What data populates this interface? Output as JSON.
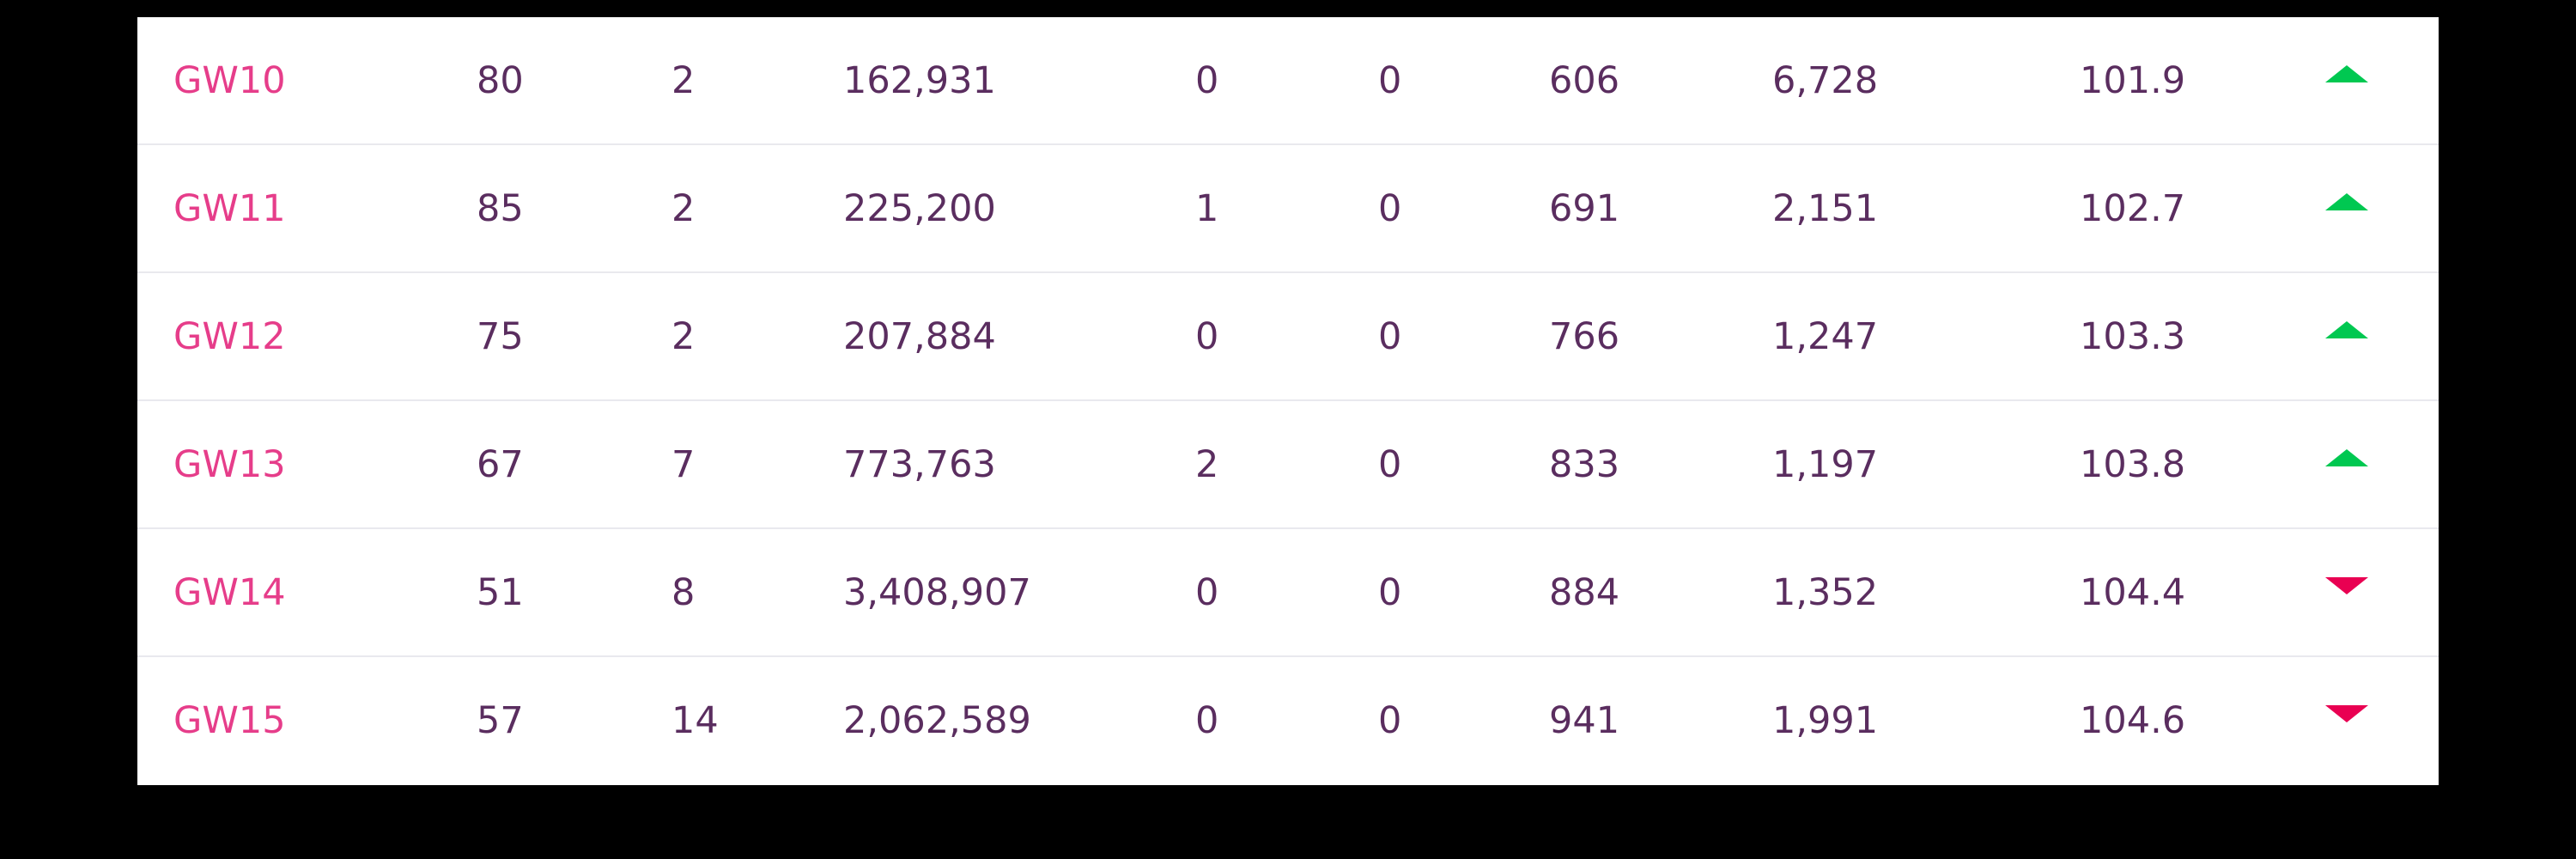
{
  "colors": {
    "gameweek_link": "#e63d8a",
    "text": "#37003c",
    "rank_up": "#00c851",
    "rank_down": "#e90052",
    "background": "#000000",
    "panel": "#ffffff"
  },
  "rows": [
    {
      "gw": "GW10",
      "points": "80",
      "bench": "2",
      "gw_rank": "162,931",
      "transfers": "0",
      "transfer_cost": "0",
      "overall_points": "606",
      "overall_rank": "6,728",
      "value": "101.9",
      "movement_icon": "arrow-up-icon"
    },
    {
      "gw": "GW11",
      "points": "85",
      "bench": "2",
      "gw_rank": "225,200",
      "transfers": "1",
      "transfer_cost": "0",
      "overall_points": "691",
      "overall_rank": "2,151",
      "value": "102.7",
      "movement_icon": "arrow-up-icon"
    },
    {
      "gw": "GW12",
      "points": "75",
      "bench": "2",
      "gw_rank": "207,884",
      "transfers": "0",
      "transfer_cost": "0",
      "overall_points": "766",
      "overall_rank": "1,247",
      "value": "103.3",
      "movement_icon": "arrow-up-icon"
    },
    {
      "gw": "GW13",
      "points": "67",
      "bench": "7",
      "gw_rank": "773,763",
      "transfers": "2",
      "transfer_cost": "0",
      "overall_points": "833",
      "overall_rank": "1,197",
      "value": "103.8",
      "movement_icon": "arrow-up-icon"
    },
    {
      "gw": "GW14",
      "points": "51",
      "bench": "8",
      "gw_rank": "3,408,907",
      "transfers": "0",
      "transfer_cost": "0",
      "overall_points": "884",
      "overall_rank": "1,352",
      "value": "104.4",
      "movement_icon": "arrow-down-icon"
    },
    {
      "gw": "GW15",
      "points": "57",
      "bench": "14",
      "gw_rank": "2,062,589",
      "transfers": "0",
      "transfer_cost": "0",
      "overall_points": "941",
      "overall_rank": "1,991",
      "value": "104.6",
      "movement_icon": "arrow-down-icon"
    }
  ]
}
